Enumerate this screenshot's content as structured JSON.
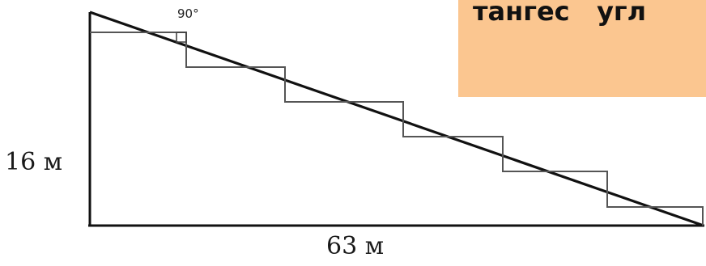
{
  "diagram": {
    "height_label": "16 м",
    "base_label": "63 м",
    "angle_label": "90°"
  },
  "banner": {
    "text": "тангес   угл",
    "color": "#fbc690"
  }
}
